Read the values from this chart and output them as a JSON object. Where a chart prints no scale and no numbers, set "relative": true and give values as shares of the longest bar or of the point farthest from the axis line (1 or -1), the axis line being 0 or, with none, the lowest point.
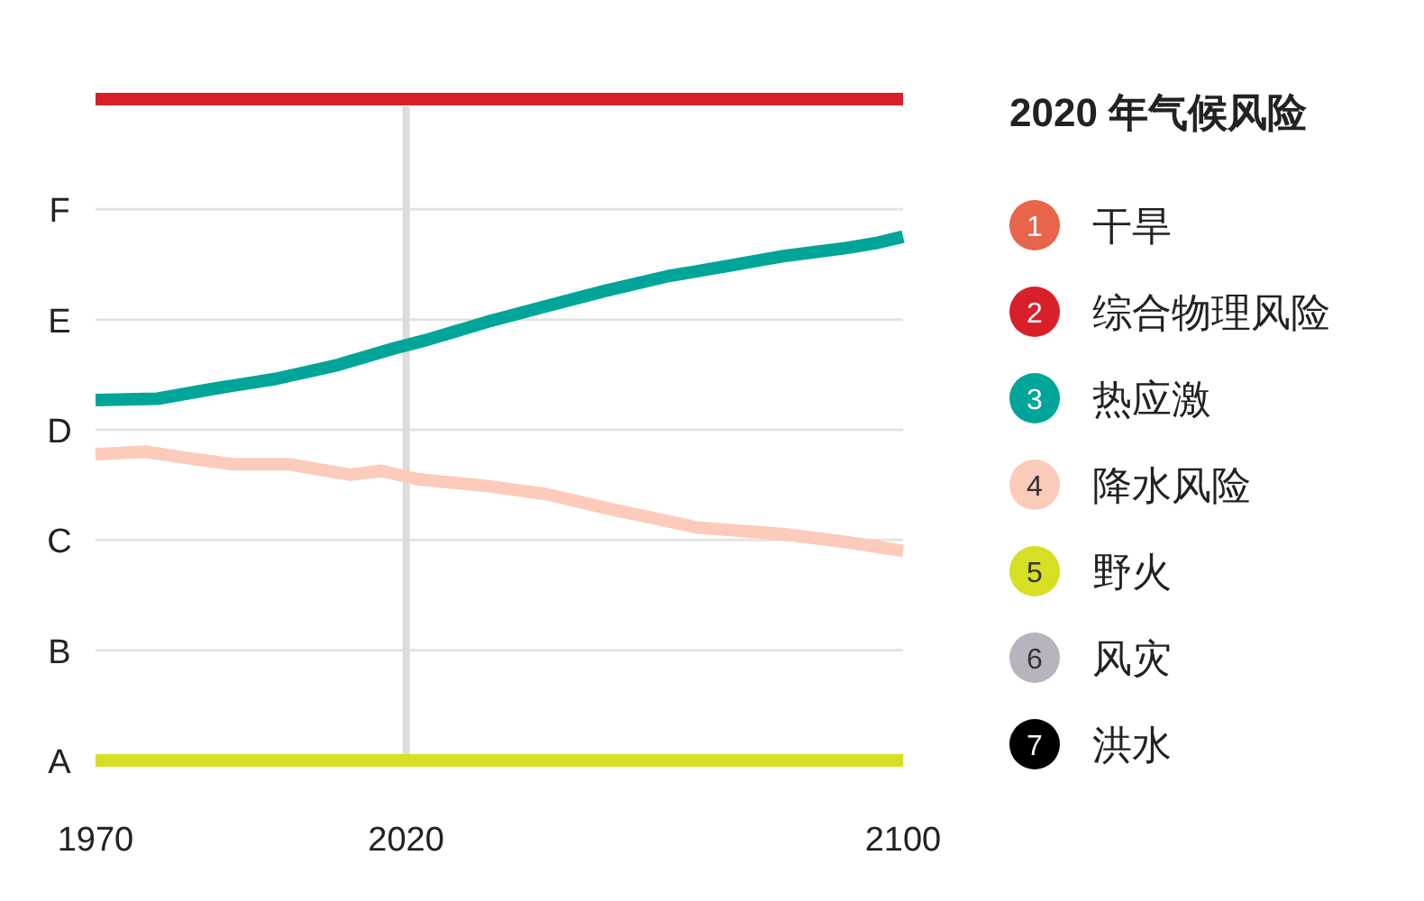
{
  "chart_data": {
    "type": "line",
    "relative": true,
    "legend_title": "2020 年气候风险",
    "legend": "right",
    "grid": "y",
    "xlim": [
      1970,
      2100
    ],
    "xticks": [
      1970,
      2020,
      2100
    ],
    "y_categories": [
      "F",
      "E",
      "D",
      "C",
      "B",
      "A"
    ],
    "annotations": [
      "1",
      "2",
      "3",
      "4",
      "5",
      "6",
      "7"
    ],
    "ref_lines": [
      {
        "axis": "x",
        "value": 2020,
        "color": "#dcdcdc"
      }
    ],
    "series": [
      {
        "name": "干旱",
        "color": "#e8644a"
      },
      {
        "name": "综合物理风险",
        "color": "#d9202a",
        "x": [
          1970,
          2100
        ],
        "values": [
          1,
          1
        ]
      },
      {
        "name": "热应激",
        "color": "#00a59a",
        "x": [
          1970,
          1980,
          1989,
          1999,
          2009,
          2018,
          2023,
          2033,
          2043,
          2052,
          2062,
          2072,
          2081,
          2091,
          2096,
          2100
        ],
        "values": [
          0.545,
          0.547,
          0.562,
          0.577,
          0.598,
          0.623,
          0.635,
          0.663,
          0.688,
          0.71,
          0.732,
          0.748,
          0.763,
          0.775,
          0.783,
          0.792
        ]
      },
      {
        "name": "降水风险",
        "color": "#fccbb9",
        "x": [
          1970,
          1978,
          1985,
          1992,
          2001,
          2011,
          2016,
          2022,
          2033,
          2043,
          2052,
          2067,
          2081,
          2091,
          2100
        ],
        "values": [
          0.463,
          0.467,
          0.457,
          0.448,
          0.448,
          0.432,
          0.438,
          0.425,
          0.415,
          0.402,
          0.382,
          0.352,
          0.342,
          0.33,
          0.317
        ]
      },
      {
        "name": "野火",
        "color": "#d6df23",
        "x": [
          1970,
          2100
        ],
        "values": [
          0,
          0
        ]
      },
      {
        "name": "风灾",
        "color": "#b9b3bd"
      },
      {
        "name": "洪水",
        "color": "#000000"
      }
    ]
  }
}
